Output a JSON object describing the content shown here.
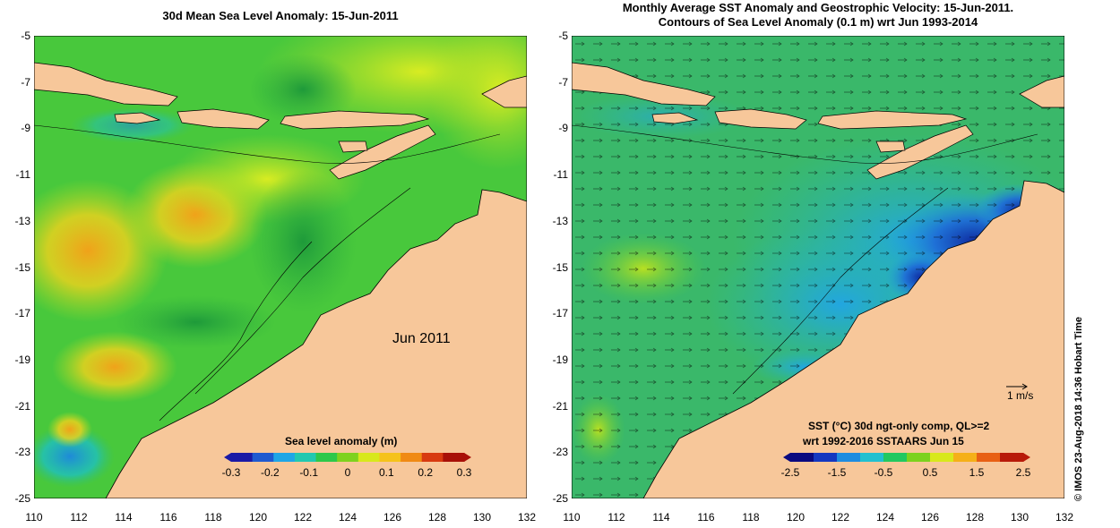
{
  "left_panel": {
    "title": "30d Mean Sea Level Anomaly: 15-Jun-2011",
    "month_label": "Jun 2011",
    "colorbar": {
      "title": "Sea level anomaly (m)",
      "ticks": [
        "-0.3",
        "-0.2",
        "-0.1",
        "0",
        "0.1",
        "0.2",
        "0.3"
      ],
      "colors": [
        "#1a1aa6",
        "#1f5ad0",
        "#1fa6e6",
        "#22c8b0",
        "#2ec84a",
        "#7fd21e",
        "#d8e81c",
        "#f5c21a",
        "#f08a14",
        "#d83a10",
        "#a81008"
      ]
    }
  },
  "right_panel": {
    "title_line1": "Monthly Average SST Anomaly  and Geostrophic Velocity: 15-Jun-2011.",
    "title_line2": "Contours of Sea Level Anomaly (0.1 m) wrt Jun 1993-2014",
    "scale_arrow_label": "1 m/s",
    "sst_label_line1": "SST (°C) 30d ngt-only comp, QL>=2",
    "sst_label_line2": "wrt 1992-2016 SSTAARS Jun 15",
    "colorbar": {
      "ticks": [
        "-2.5",
        "-1.5",
        "-0.5",
        "0.5",
        "1.5",
        "2.5"
      ],
      "colors": [
        "#0a0a80",
        "#1438c0",
        "#1e8ce0",
        "#22c0d0",
        "#22c860",
        "#7cd21e",
        "#d8e81c",
        "#f5b018",
        "#e86014",
        "#b81a0a"
      ]
    }
  },
  "axes": {
    "y_ticks": [
      "-5",
      "-7",
      "-9",
      "-11",
      "-13",
      "-15",
      "-17",
      "-19",
      "-21",
      "-23",
      "-25"
    ],
    "x_ticks": [
      "110",
      "112",
      "114",
      "116",
      "118",
      "120",
      "122",
      "124",
      "126",
      "128",
      "130",
      "132"
    ],
    "lon_range": [
      110,
      132
    ],
    "lat_range": [
      -25,
      -5
    ]
  },
  "credit": "© IMOS 23-Aug-2018 14:36 Hobart Time",
  "colors": {
    "land": "#f7c79a",
    "sla_ocean": "#48c83c",
    "sst_ocean": "#3ab86a"
  }
}
